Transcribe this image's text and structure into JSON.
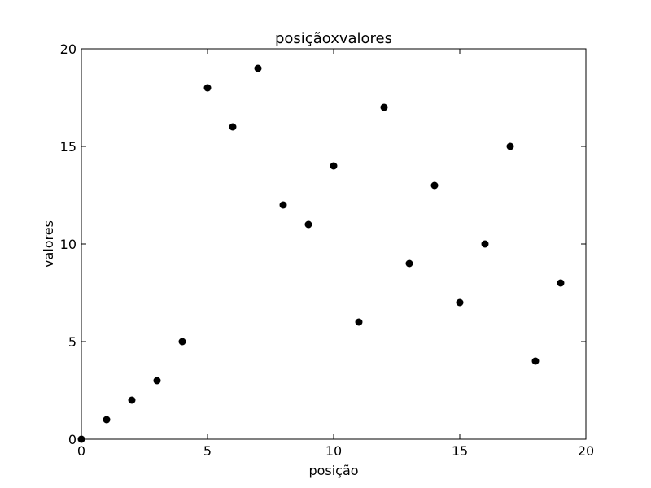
{
  "chart_data": {
    "type": "scatter",
    "title": "posiçãoxvalores",
    "xlabel": "posição",
    "ylabel": "valores",
    "xlim": [
      0,
      20
    ],
    "ylim": [
      0,
      20
    ],
    "xticks": [
      0,
      5,
      10,
      15,
      20
    ],
    "yticks": [
      0,
      5,
      10,
      15,
      20
    ],
    "grid": false,
    "marker_color": "#000000",
    "series": [
      {
        "x": [
          0,
          1,
          2,
          3,
          4,
          5,
          6,
          7,
          8,
          9,
          10,
          11,
          12,
          13,
          14,
          15,
          16,
          17,
          18,
          19
        ],
        "y": [
          0,
          1,
          2,
          3,
          5,
          18,
          16,
          19,
          12,
          11,
          14,
          6,
          17,
          9,
          13,
          7,
          10,
          15,
          4,
          8
        ]
      }
    ]
  }
}
